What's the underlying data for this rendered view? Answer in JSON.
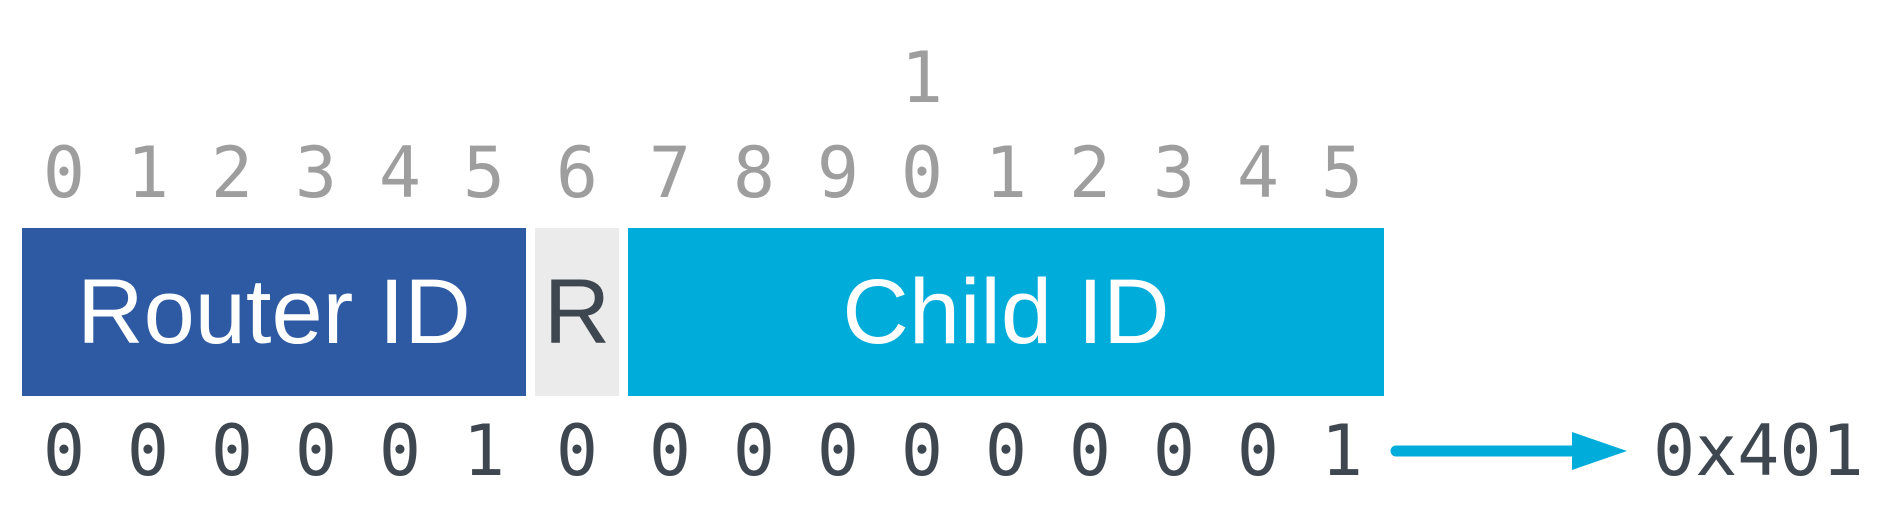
{
  "diagram": {
    "type": "bit-field",
    "tens_label": "1",
    "bit_indices": [
      "0",
      "1",
      "2",
      "3",
      "4",
      "5",
      "6",
      "7",
      "8",
      "9",
      "0",
      "1",
      "2",
      "3",
      "4",
      "5"
    ],
    "fields": [
      {
        "label": "Router ID",
        "bits": 6
      },
      {
        "label": "R",
        "bits": 1
      },
      {
        "label": "Child ID",
        "bits": 9
      }
    ],
    "binary_bits": [
      "0",
      "0",
      "0",
      "0",
      "0",
      "1",
      "0",
      "0",
      "0",
      "0",
      "0",
      "0",
      "0",
      "0",
      "0",
      "1"
    ],
    "hex_value": "0x401",
    "colors": {
      "router_field_bg": "#2E5AA4",
      "router_field_text": "#FFFFFF",
      "r_field_bg": "#EBEBEB",
      "r_field_text": "#3E474F",
      "child_field_bg": "#00ACDA",
      "child_field_text": "#FFFFFF",
      "bit_index_text": "#9E9E9E",
      "binary_text": "#3E474F",
      "arrow": "#00ACDA",
      "background": "#FFFFFF"
    }
  }
}
